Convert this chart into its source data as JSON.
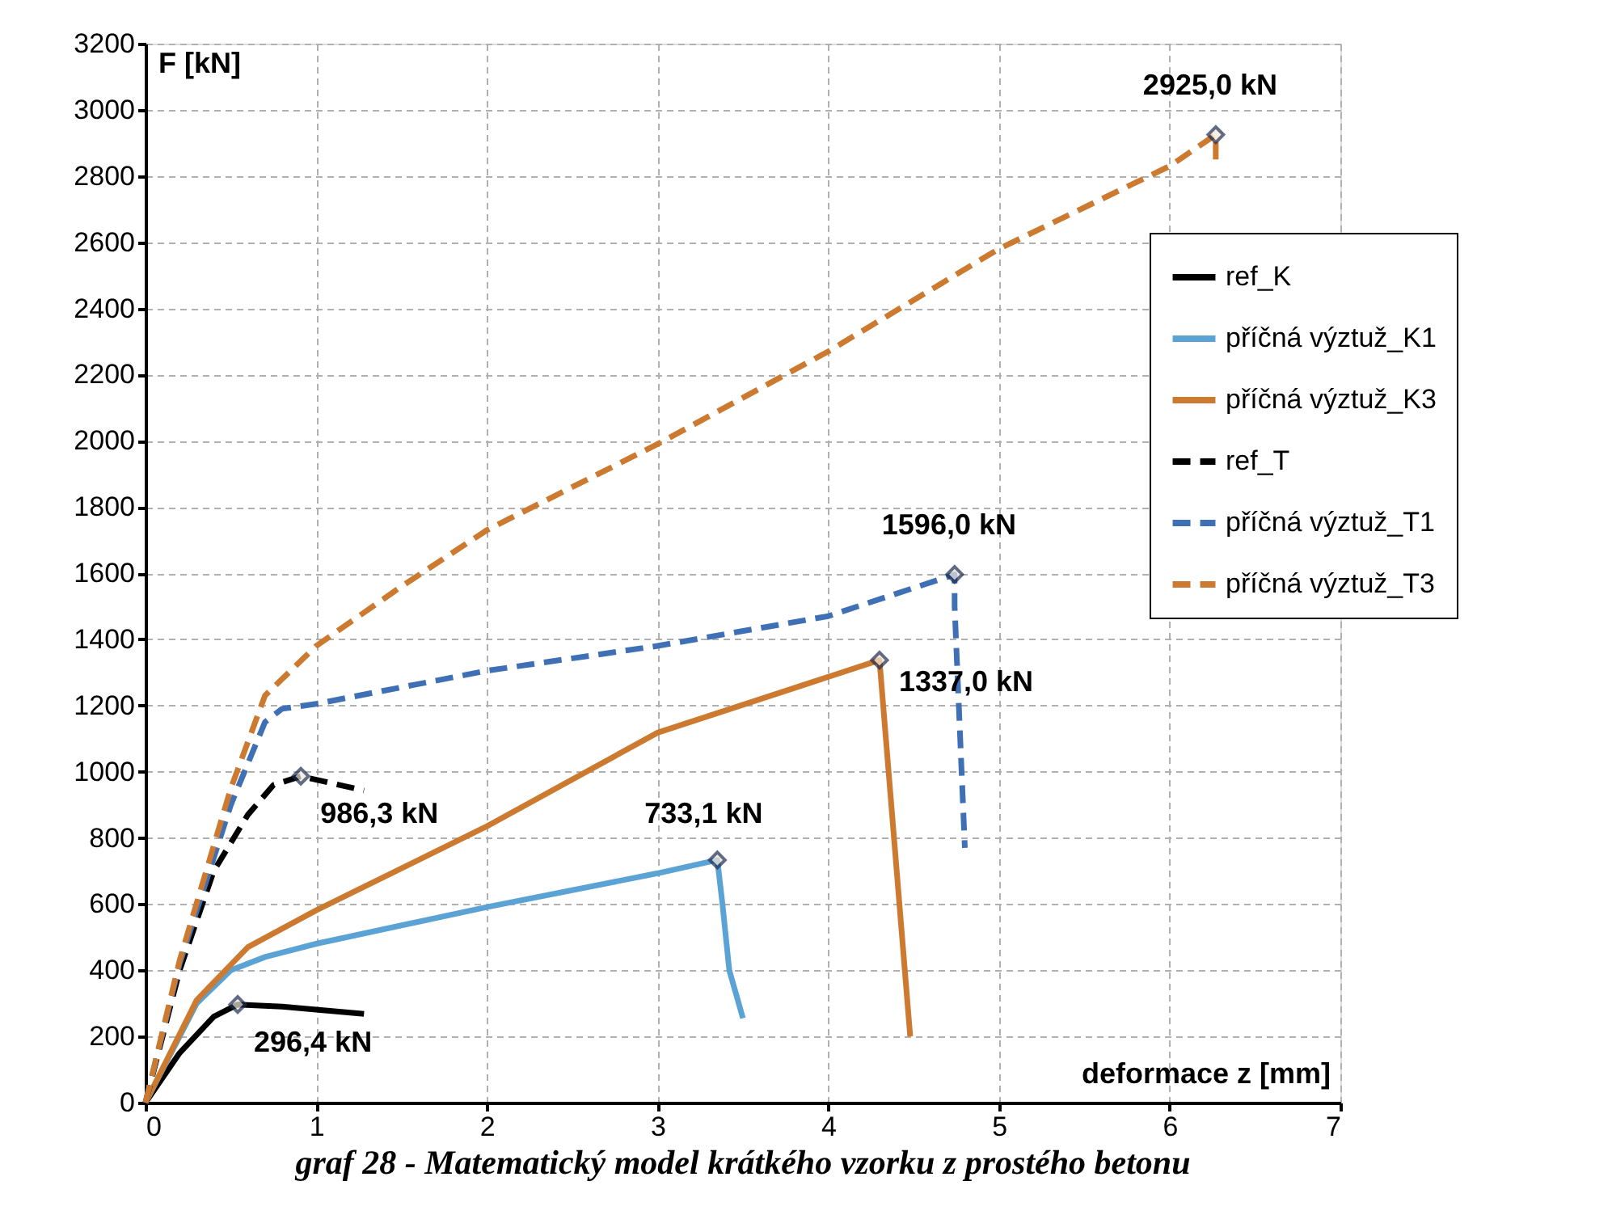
{
  "chart_data": {
    "type": "line",
    "title": "graf 28 - Matematický model krátkého vzorku z prostého betonu",
    "xlabel": "deformace z [mm]",
    "ylabel": "F [kN]",
    "xlim": [
      0,
      7
    ],
    "xticks": [
      0,
      1,
      2,
      3,
      4,
      5,
      6,
      7
    ],
    "ylim": [
      0,
      3200
    ],
    "yticks": [
      0,
      200,
      400,
      600,
      800,
      1000,
      1200,
      1400,
      1600,
      1800,
      2000,
      2200,
      2400,
      2600,
      2800,
      3000,
      3200
    ],
    "grid": true,
    "legend": "right",
    "series": [
      {
        "name": "ref_K",
        "color": "#000000",
        "line_style": "solid",
        "x": [
          0,
          0.2,
          0.4,
          0.54,
          0.8,
          1.28
        ],
        "values": [
          0,
          150,
          260,
          296.4,
          290,
          268
        ]
      },
      {
        "name": "příčná výztuž_K1",
        "color": "#5ba3d5",
        "line_style": "solid",
        "x": [
          0,
          0.3,
          0.5,
          0.7,
          1,
          2,
          3,
          3.35,
          3.38,
          3.42,
          3.5
        ],
        "values": [
          0,
          300,
          400,
          440,
          480,
          591,
          693,
          733.1,
          600,
          400,
          255
        ]
      },
      {
        "name": "příčná výztuž_K3",
        "color": "#cc7a30",
        "line_style": "solid",
        "x": [
          0,
          0.3,
          0.6,
          1,
          2,
          3,
          4.3,
          4.48
        ],
        "values": [
          0,
          310,
          470,
          581,
          835,
          1118,
          1337,
          200
        ]
      },
      {
        "name": "ref_T",
        "color": "#000000",
        "line_style": "dashed",
        "x": [
          0,
          0.2,
          0.4,
          0.6,
          0.75,
          0.91,
          1.28
        ],
        "values": [
          0,
          400,
          700,
          870,
          960,
          986.3,
          943
        ]
      },
      {
        "name": "příčná výztuž_T1",
        "color": "#3f6fb5",
        "line_style": "dashed",
        "x": [
          0,
          0.2,
          0.5,
          0.7,
          0.8,
          1,
          2,
          3,
          4,
          4.74,
          4.74,
          4.8
        ],
        "values": [
          0,
          420,
          900,
          1150,
          1190,
          1205,
          1305,
          1380,
          1470,
          1596,
          1500,
          770
        ]
      },
      {
        "name": "příčná výztuž_T3",
        "color": "#cc7a30",
        "line_style": "dashed",
        "x": [
          0,
          0.2,
          0.5,
          0.7,
          1,
          1.5,
          2,
          3,
          4,
          5,
          6,
          6.27,
          6.27
        ],
        "values": [
          0,
          430,
          950,
          1230,
          1380,
          1560,
          1730,
          1990,
          2270,
          2580,
          2830,
          2925,
          2840
        ]
      }
    ],
    "annotations": [
      {
        "text": "296,4 kN",
        "x": 0.54,
        "y": 296.4
      },
      {
        "text": "733,1 kN",
        "x": 3.35,
        "y": 733.1
      },
      {
        "text": "1337,0 kN",
        "x": 4.3,
        "y": 1337
      },
      {
        "text": "986,3 kN",
        "x": 0.91,
        "y": 986.3
      },
      {
        "text": "1596,0 kN",
        "x": 4.74,
        "y": 1596
      },
      {
        "text": "2925,0 kN",
        "x": 6.27,
        "y": 2925
      }
    ]
  }
}
